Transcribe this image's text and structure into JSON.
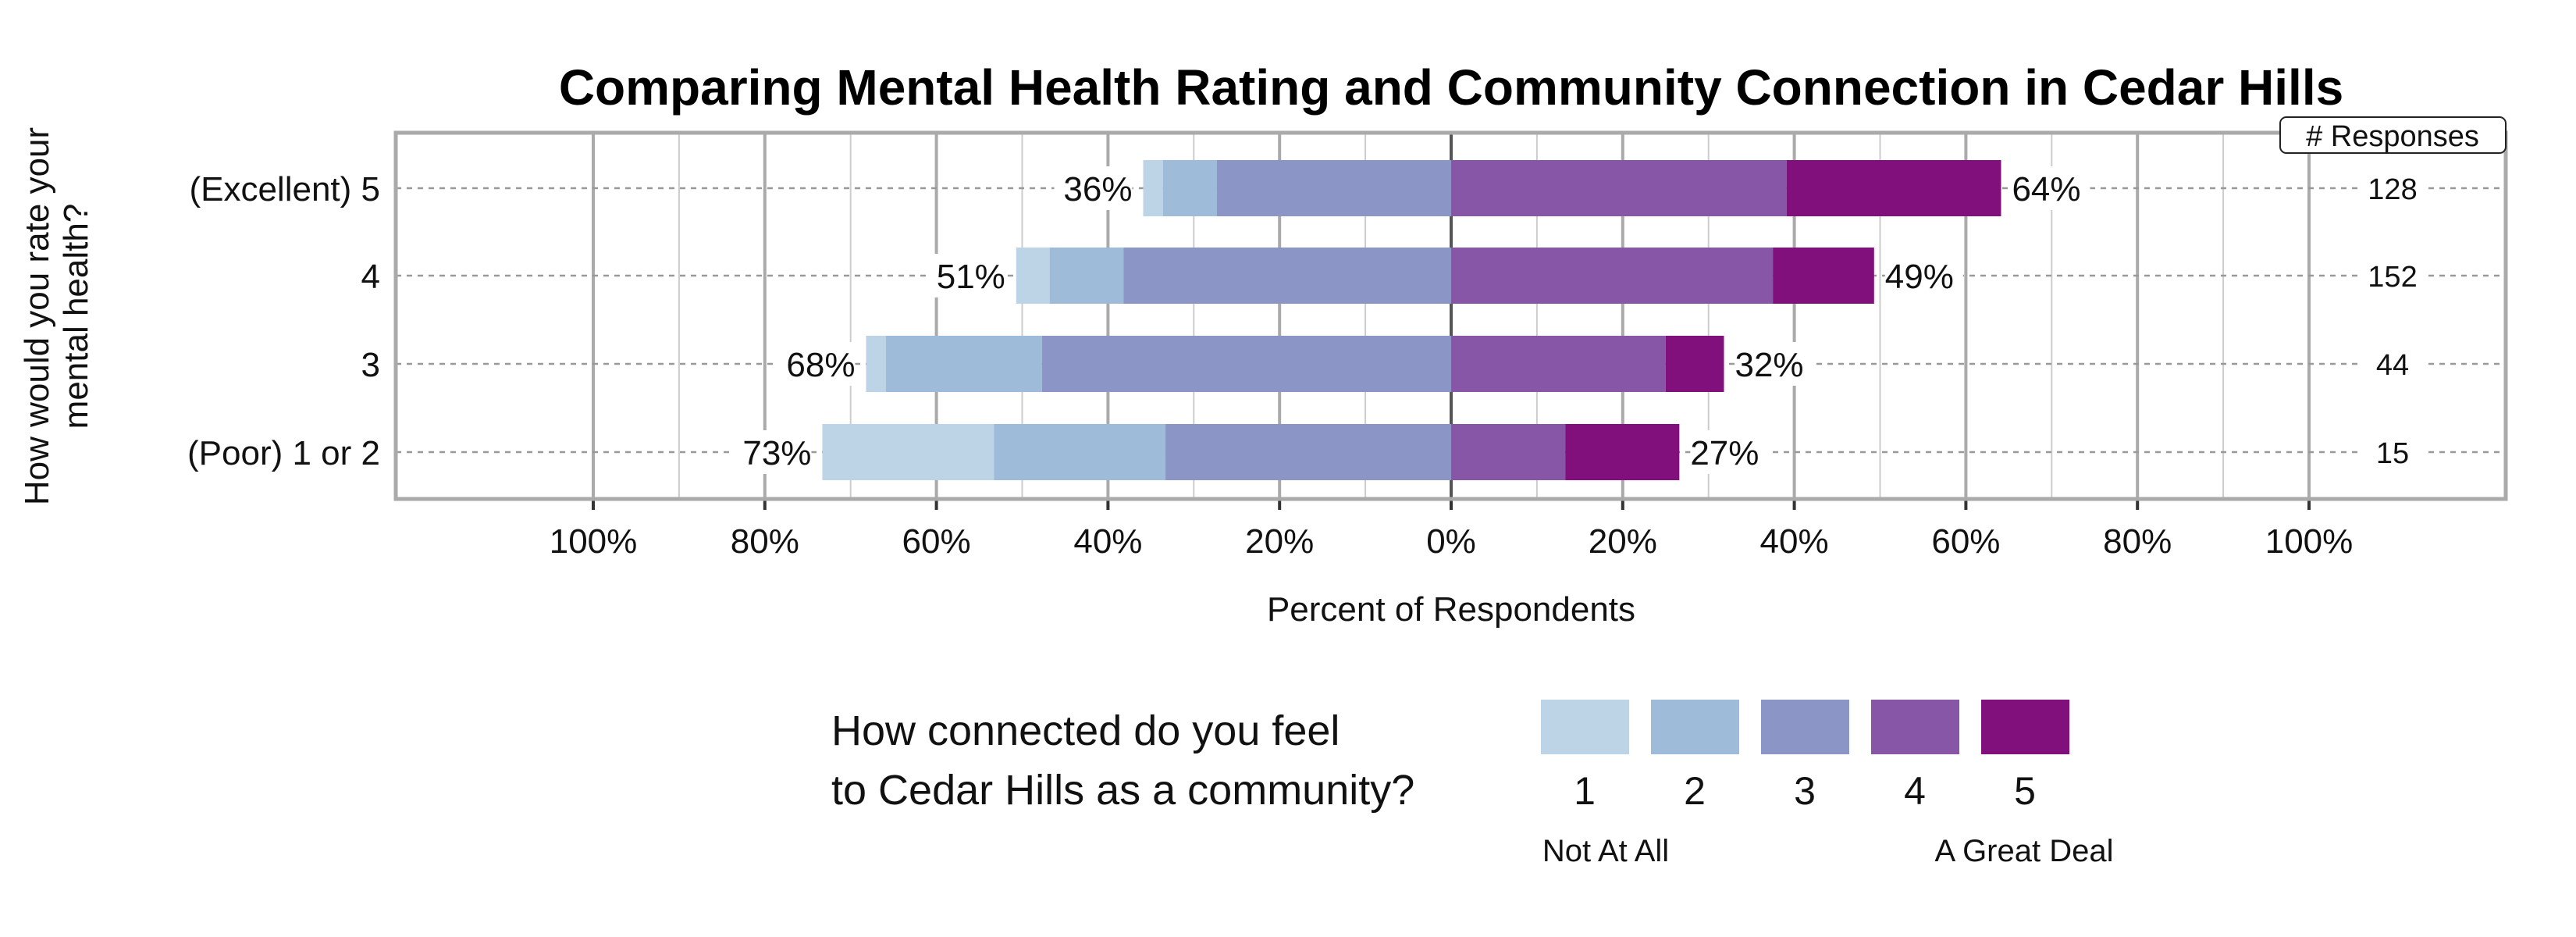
{
  "chart_data": {
    "type": "bar",
    "subtype": "diverging-stacked-horizontal",
    "title": "Comparing Mental Health Rating and Community Connection in Cedar Hills",
    "ylabel": [
      "How would you rate your",
      "mental health?"
    ],
    "xlabel": "Percent of Respondents",
    "xlim": [
      -123,
      123
    ],
    "x_ticks": [
      -100,
      -80,
      -60,
      -40,
      -20,
      0,
      20,
      40,
      60,
      80,
      100
    ],
    "x_tick_labels": [
      "100%",
      "80%",
      "60%",
      "40%",
      "20%",
      "0%",
      "20%",
      "40%",
      "60%",
      "80%",
      "100%"
    ],
    "grid": true,
    "categories": [
      "(Excellent) 5",
      "4",
      "3",
      "(Poor) 1 or 2"
    ],
    "series": [
      {
        "name": "1",
        "side": "negative",
        "color": "#bdd3e6",
        "values": [
          2.3,
          3.9,
          2.3,
          20.0
        ]
      },
      {
        "name": "2",
        "side": "negative",
        "color": "#9ebbd9",
        "values": [
          6.3,
          8.6,
          18.2,
          20.0
        ]
      },
      {
        "name": "3",
        "side": "negative",
        "color": "#8c96c6",
        "values": [
          27.3,
          38.2,
          47.7,
          33.3
        ]
      },
      {
        "name": "4",
        "side": "positive",
        "color": "#8856a7",
        "values": [
          39.1,
          37.5,
          25.0,
          13.3
        ]
      },
      {
        "name": "5",
        "side": "positive",
        "color": "#810f7c",
        "values": [
          25.0,
          11.8,
          6.8,
          13.3
        ]
      }
    ],
    "negative_totals": [
      "36%",
      "51%",
      "68%",
      "73%"
    ],
    "positive_totals": [
      "64%",
      "49%",
      "32%",
      "27%"
    ],
    "responses_header": "# Responses",
    "responses": [
      "128",
      "152",
      "44",
      "15"
    ],
    "legend": {
      "title": [
        "How connected do you feel",
        "to Cedar Hills as a community?"
      ],
      "placement": "bottom",
      "low_label": "Not At All",
      "high_label": "A Great Deal"
    }
  }
}
